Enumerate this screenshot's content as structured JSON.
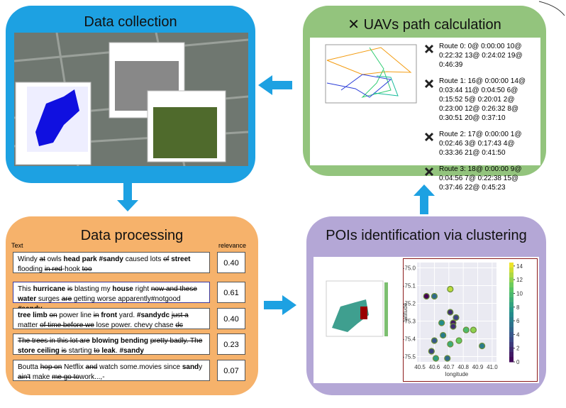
{
  "panels": {
    "collection": {
      "title": "Data collection"
    },
    "uav": {
      "title": "UAVs path calculation",
      "routes": [
        "Route 0: 0@ 0:00:00 10@ 0:22:32 13@ 0:24:02 19@ 0:46:39",
        "Route 1: 16@ 0:00:00 14@ 0:03:44 11@ 0:04:50 6@ 0:15:52 5@ 0:20:01 2@ 0:23:00 12@ 0:26:32 8@ 0:30:51 20@ 0:37:10",
        "Route 2: 17@ 0:00:00 1@ 0:02:46 3@ 0:17:43 4@ 0:33:36 21@ 0:41:50",
        "Route 3: 18@ 0:00:00 9@ 0:04:56 7@ 0:22:38 15@ 0:37:46 22@ 0:45:23"
      ]
    },
    "processing": {
      "title": "Data processing",
      "columns": [
        "Text",
        "relevance"
      ],
      "rows": [
        {
          "segments": [
            "Windy ",
            {
              "text": "at",
              "style": "strike"
            },
            " owls ",
            {
              "text": "head park #sandy",
              "style": "bold"
            },
            " caused lots ",
            {
              "text": "of",
              "style": "strike"
            },
            " ",
            {
              "text": "street",
              "style": "bold"
            },
            " flooding ",
            {
              "text": "in red",
              "style": "strike"
            },
            "-hook ",
            {
              "text": "too",
              "style": "strike"
            }
          ],
          "relevance": "0.40"
        },
        {
          "segments": [
            "This ",
            {
              "text": "hurricane",
              "style": "bold"
            },
            " ",
            {
              "text": "is",
              "style": "strike"
            },
            " blasting my ",
            {
              "text": "house",
              "style": "bold"
            },
            " right ",
            {
              "text": "now and these",
              "style": "strike"
            },
            " ",
            {
              "text": "water",
              "style": "bold"
            },
            " surges ",
            {
              "text": "are",
              "style": "strike"
            },
            " getting worse apparently#notgood ",
            {
              "text": "#sandy",
              "style": "bold"
            }
          ],
          "relevance": "0.61"
        },
        {
          "segments": [
            {
              "text": "tree limb",
              "style": "bold"
            },
            " ",
            {
              "text": "on",
              "style": "strike"
            },
            " power line ",
            {
              "text": "in",
              "style": "strike"
            },
            " ",
            {
              "text": "front",
              "style": "bold"
            },
            " yard. ",
            {
              "text": "#sandydc",
              "style": "bold"
            },
            " ",
            {
              "text": "just a",
              "style": "strike"
            },
            " matter ",
            {
              "text": "of time before we",
              "style": "strike"
            },
            " lose power. chevy chase ",
            {
              "text": "dc",
              "style": "strike"
            }
          ],
          "relevance": "0.40"
        },
        {
          "segments": [
            {
              "text": "The trees in this lot are",
              "style": "strike"
            },
            " ",
            {
              "text": "blowing bending",
              "style": "bold"
            },
            " ",
            {
              "text": "pretty badly. The",
              "style": "strike"
            },
            " ",
            {
              "text": "store ceiling",
              "style": "bold"
            },
            " ",
            {
              "text": "is",
              "style": "strike"
            },
            " starting ",
            {
              "text": "to",
              "style": "strike"
            },
            " ",
            {
              "text": "leak",
              "style": "bold"
            },
            ".  ",
            {
              "text": "#sandy",
              "style": "bold"
            }
          ],
          "relevance": "0.23"
        },
        {
          "segments": [
            "Boutta ",
            {
              "text": "hop on",
              "style": "strike"
            },
            " Netflix ",
            {
              "text": "and",
              "style": "strike"
            },
            " watch some.movies since ",
            {
              "text": "sand",
              "style": "bold"
            },
            "y ",
            {
              "text": "ain't",
              "style": "strike"
            },
            " make ",
            {
              "text": "me go to",
              "style": "strike"
            },
            "work...,-"
          ],
          "relevance": "0.07"
        }
      ]
    },
    "pois": {
      "title": "POIs identification via clustering",
      "plot": {
        "xlabel": "longitude",
        "ylabel": "latitude",
        "xlim": [
          40.48,
          41.03
        ],
        "ylim": [
          -75.53,
          -74.97
        ],
        "xticks": [
          40.5,
          40.6,
          40.7,
          40.8,
          40.9,
          {
            "value": 41,
            "label": "41.0"
          }
        ],
        "yticks": [
          {
            "value": -75,
            "label": "-75.0"
          },
          -75.1,
          -75.2,
          -75.3,
          -75.4,
          {
            "value": -75.5,
            "label": "-75.5"
          }
        ],
        "clim": [
          0,
          14.5
        ],
        "cticks": [
          0,
          2,
          4,
          6,
          8,
          10,
          12,
          14
        ],
        "points": {
          "x": [
            40.545,
            40.71,
            40.71,
            40.73,
            40.75,
            40.73,
            40.6,
            40.66,
            40.6,
            40.65,
            40.71,
            40.77,
            40.82,
            40.87,
            40.93,
            40.61,
            40.69,
            40.58
          ],
          "y": [
            -75.16,
            -75.12,
            -75.25,
            -75.31,
            -75.28,
            -75.33,
            -75.16,
            -75.38,
            -75.41,
            -75.31,
            -75.43,
            -75.41,
            -75.35,
            -75.35,
            -75.44,
            -75.51,
            -75.51,
            -75.47
          ],
          "c": [
            0,
            13,
            2,
            1,
            3,
            2,
            5,
            6,
            4,
            7,
            9,
            11,
            10,
            12,
            6,
            8,
            5,
            3
          ]
        }
      }
    }
  }
}
